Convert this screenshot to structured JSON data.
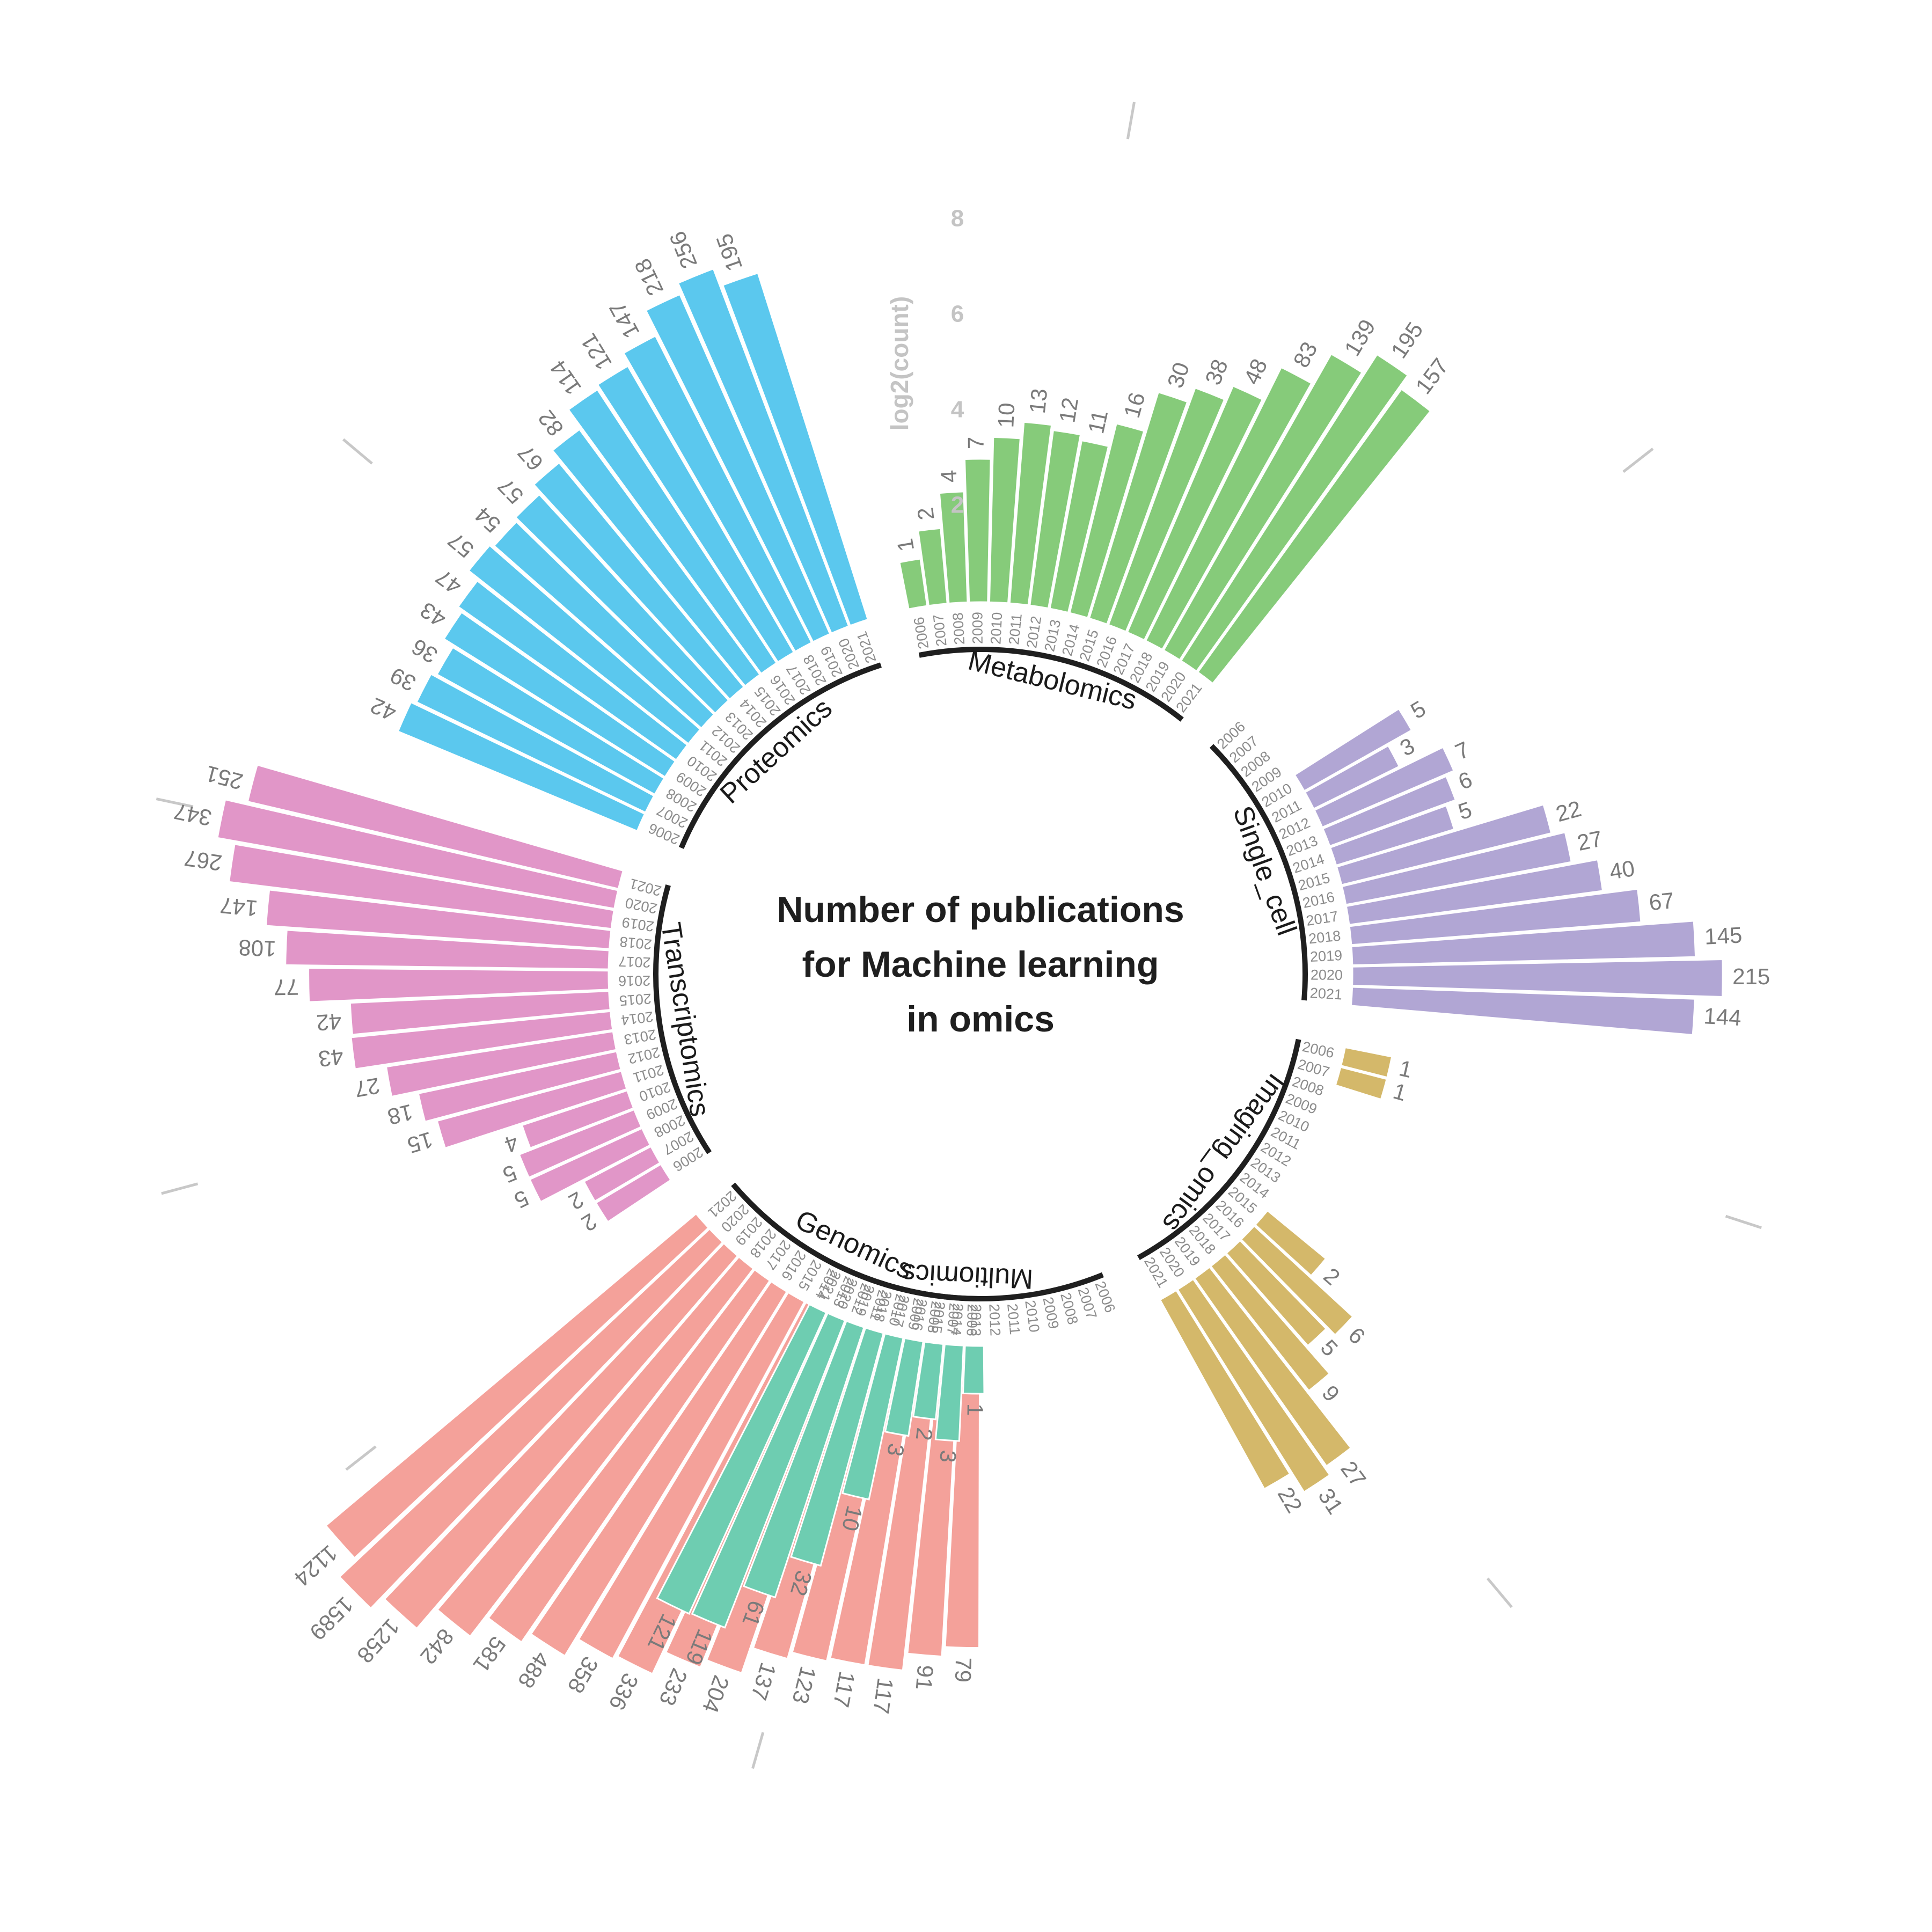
{
  "chart_data": {
    "type": "bar",
    "layout": "circular",
    "title_lines": [
      "Number of publications",
      "for Machine learning",
      "in omics"
    ],
    "ylabel": "log2(count)",
    "y_ticks": [
      "2",
      "4",
      "6",
      "8"
    ],
    "categories": [
      "2006",
      "2007",
      "2008",
      "2009",
      "2010",
      "2011",
      "2012",
      "2013",
      "2014",
      "2015",
      "2016",
      "2017",
      "2018",
      "2019",
      "2020",
      "2021"
    ],
    "series": [
      {
        "name": "Genomics",
        "color": "#F4A19A",
        "values": [
          79,
          91,
          117,
          117,
          123,
          137,
          204,
          233,
          336,
          358,
          488,
          581,
          842,
          1258,
          1589,
          1124
        ]
      },
      {
        "name": "Transcriptomics",
        "color": "#E196C8",
        "values": [
          2,
          2,
          5,
          5,
          4,
          15,
          18,
          27,
          43,
          42,
          77,
          108,
          147,
          267,
          347,
          251
        ]
      },
      {
        "name": "Proteomics",
        "color": "#5BC8EE",
        "values": [
          42,
          39,
          36,
          43,
          47,
          57,
          54,
          57,
          67,
          82,
          114,
          121,
          147,
          218,
          256,
          195
        ]
      },
      {
        "name": "Metabolomics",
        "color": "#86CB7A",
        "values": [
          1,
          2,
          4,
          7,
          10,
          13,
          12,
          11,
          16,
          30,
          38,
          48,
          83,
          139,
          195,
          157
        ]
      },
      {
        "name": "Single_cell",
        "color": "#B1A6D4",
        "values": [
          null,
          null,
          null,
          null,
          5,
          3,
          7,
          6,
          5,
          22,
          27,
          40,
          67,
          145,
          215,
          144
        ]
      },
      {
        "name": "Imaging_omics",
        "color": "#D4B86A",
        "values": [
          1,
          1,
          null,
          null,
          null,
          null,
          null,
          null,
          null,
          2,
          6,
          5,
          9,
          27,
          31,
          22
        ]
      },
      {
        "name": "Multiomics",
        "color": "#6ECDB1",
        "values": [
          null,
          null,
          null,
          null,
          null,
          null,
          null,
          1,
          3,
          2,
          3,
          10,
          32,
          61,
          119,
          121
        ]
      }
    ]
  }
}
